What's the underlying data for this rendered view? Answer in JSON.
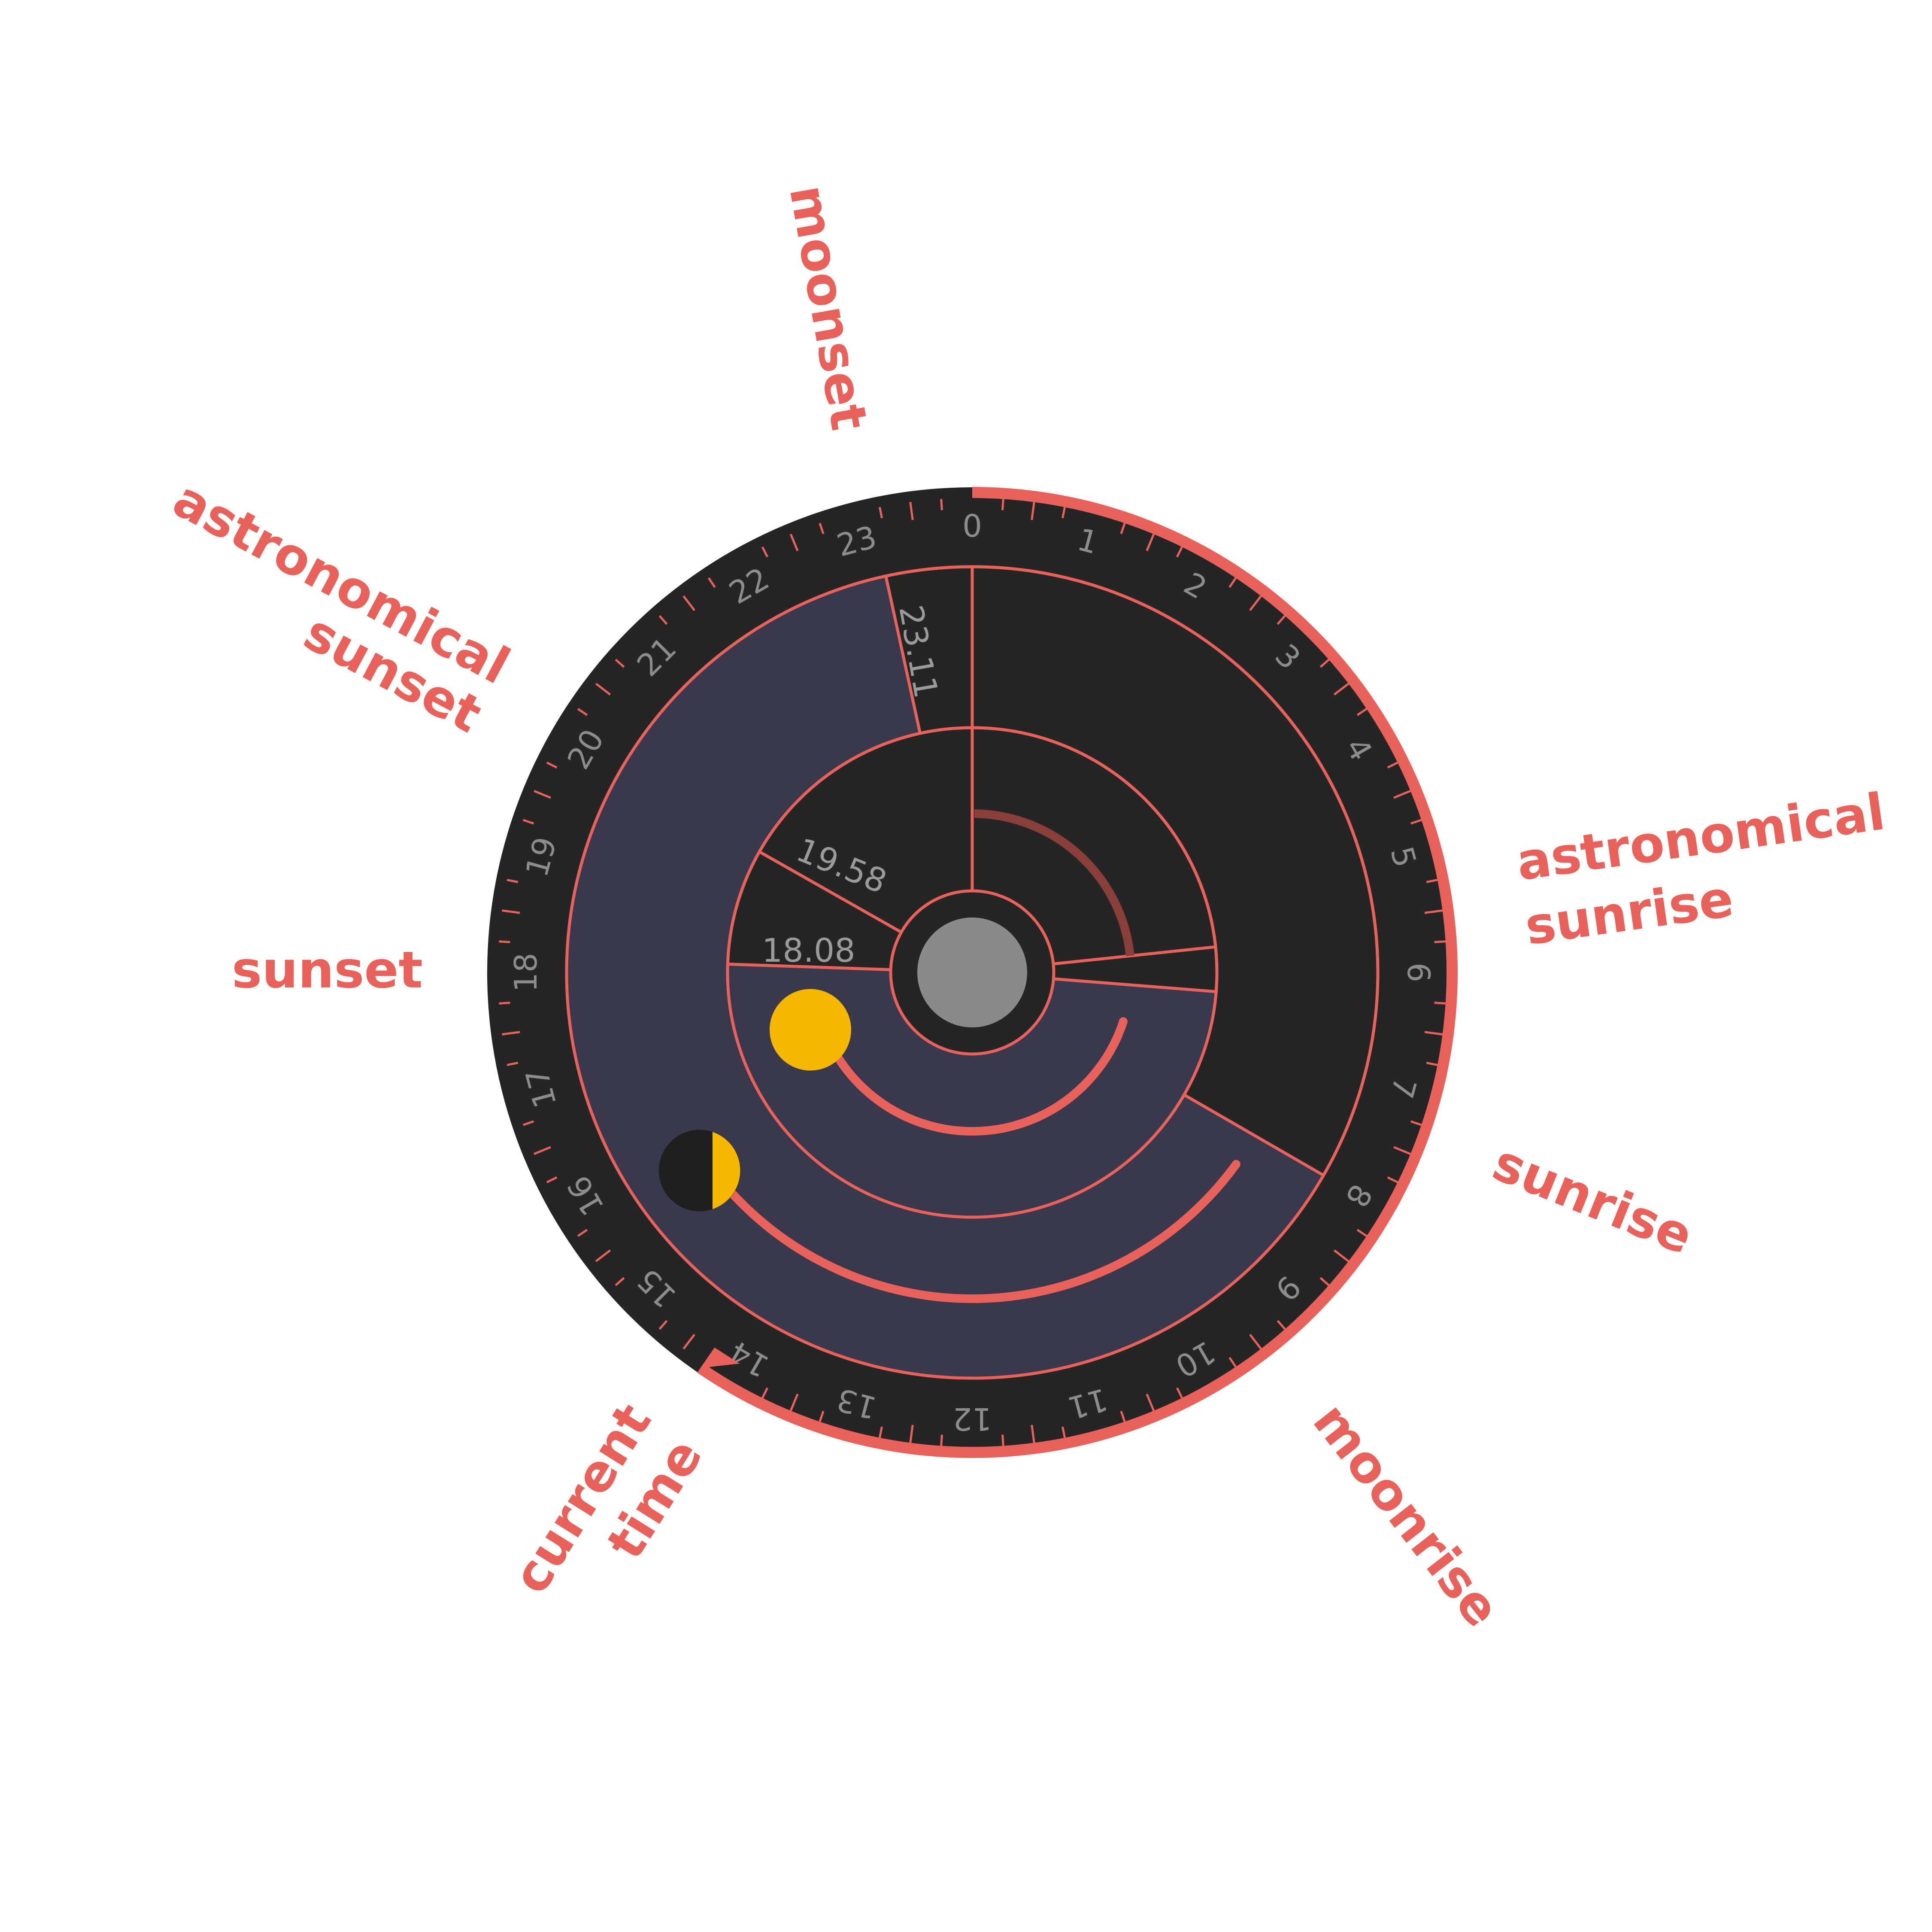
{
  "callouts": {
    "moonset": "moonset",
    "astronomical_sunset": [
      "astronomical",
      "sunset"
    ],
    "sunset": "sunset",
    "astronomical_sunrise": [
      "astronomical",
      "sunrise"
    ],
    "sunrise": "sunrise",
    "moonrise": "moonrise",
    "current_time": [
      "current",
      "time"
    ]
  },
  "dial": {
    "hours": [
      "0",
      "1",
      "2",
      "3",
      "4",
      "5",
      "6",
      "7",
      "8",
      "9",
      "10",
      "11",
      "12",
      "13",
      "14",
      "15",
      "16",
      "17",
      "18",
      "19",
      "20",
      "21",
      "22",
      "23"
    ]
  },
  "times": {
    "astronomical_sunset": "23.11",
    "sunset": "19.58",
    "moon_label": "18.08"
  },
  "events_hours": {
    "current_time": 14.3,
    "moonset_day_range": [
      22.85,
      9.0
    ],
    "astro_sunset": 23.18,
    "sunset": 19.97,
    "sunrise_inner": 6.3,
    "sunrise_outer": 8.0,
    "moon_line": 18.13
  },
  "colors": {
    "accent": "#e8615a",
    "dial_bg": "#252525",
    "night_fill": "#3a384c",
    "sun": "#f5b700",
    "center": "#8a8a8a",
    "label": "#9a9a9a"
  }
}
